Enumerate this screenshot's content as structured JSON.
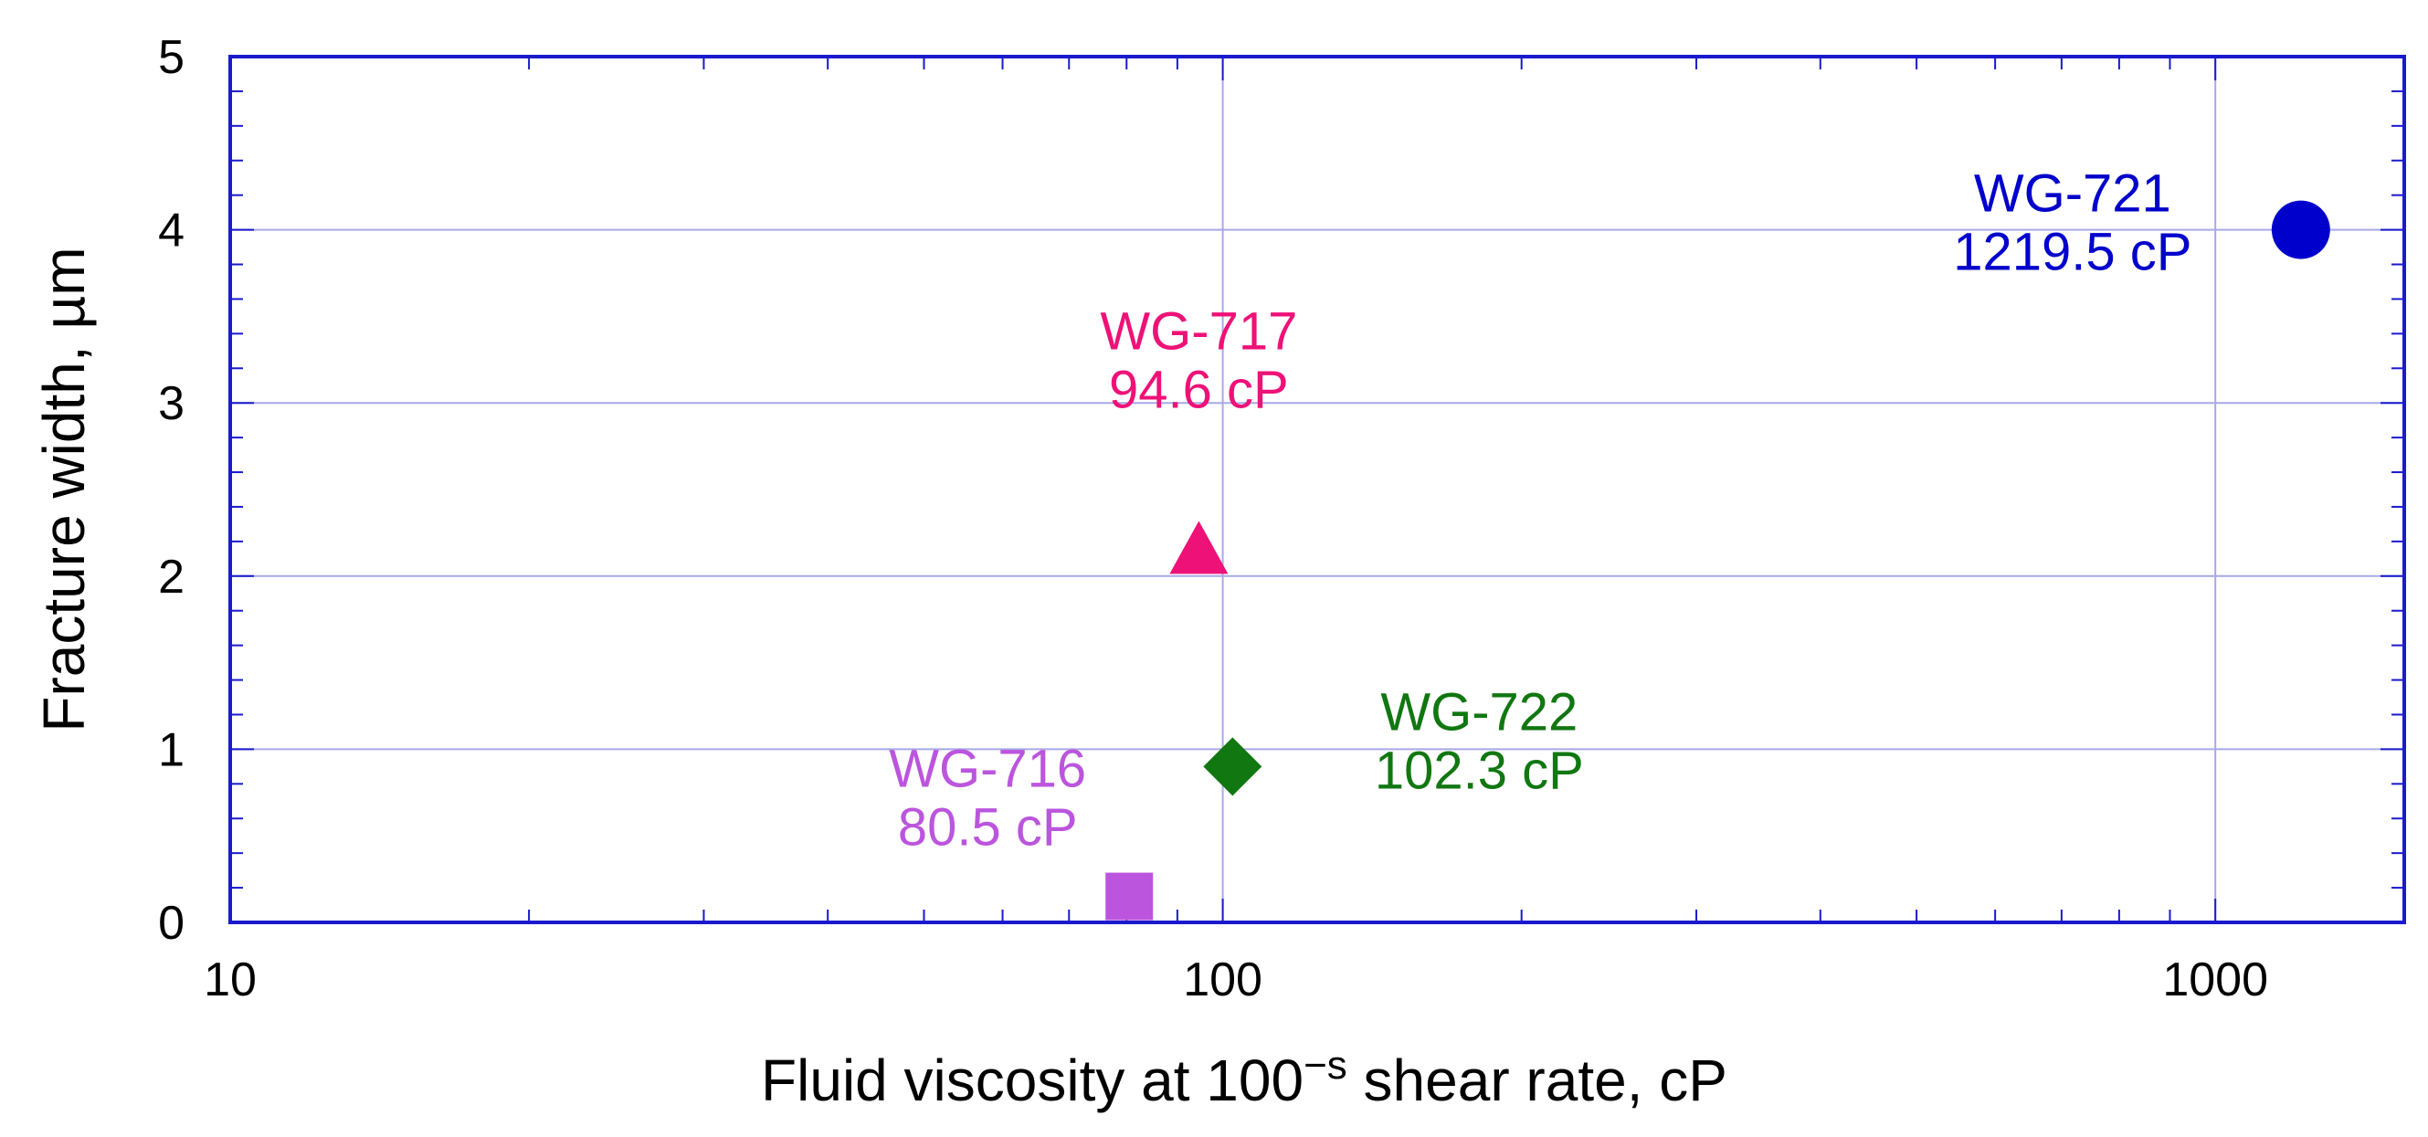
{
  "chart_data": {
    "type": "scatter",
    "xlabel": "Fluid viscosity at 100",
    "xlabel_superscript": "−s",
    "xlabel_suffix": " shear rate, cP",
    "ylabel": "Fracture width, µm",
    "x_scale": "log",
    "xlim": [
      10,
      1550
    ],
    "ylim": [
      0,
      5
    ],
    "x_ticks": [
      {
        "value": 10,
        "label": "10"
      },
      {
        "value": 100,
        "label": "100"
      },
      {
        "value": 1000,
        "label": "1000"
      }
    ],
    "y_ticks": [
      {
        "value": 0,
        "label": "0"
      },
      {
        "value": 1,
        "label": "1"
      },
      {
        "value": 2,
        "label": "2"
      },
      {
        "value": 3,
        "label": "3"
      },
      {
        "value": 4,
        "label": "4"
      },
      {
        "value": 5,
        "label": "5"
      }
    ],
    "grid": true,
    "frame_color": "#1a1acc",
    "grid_color": "#a8a8e8",
    "points": [
      {
        "name": "WG-716",
        "viscosity_label": "80.5 cP",
        "x": 80.5,
        "y": 0.15,
        "marker": "square",
        "color": "#bb55dd",
        "label_side": "upper-left"
      },
      {
        "name": "WG-717",
        "viscosity_label": "94.6 cP",
        "x": 94.6,
        "y": 2.15,
        "marker": "triangle",
        "color": "#ee1177",
        "label_side": "top"
      },
      {
        "name": "WG-722",
        "viscosity_label": "102.3 cP",
        "x": 102.3,
        "y": 0.9,
        "marker": "diamond",
        "color": "#117711",
        "label_side": "right"
      },
      {
        "name": "WG-721",
        "viscosity_label": "1219.5 cP",
        "x": 1219.5,
        "y": 4.0,
        "marker": "circle",
        "color": "#0000cc",
        "label_side": "left"
      }
    ]
  }
}
